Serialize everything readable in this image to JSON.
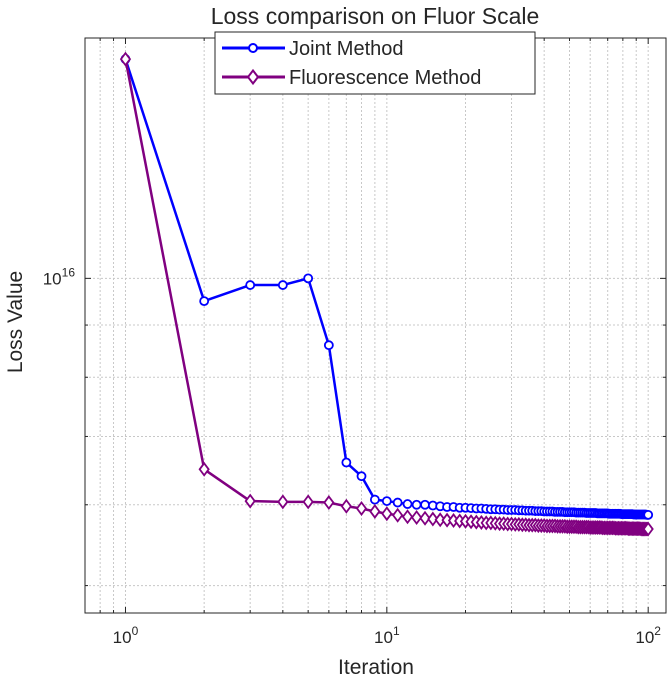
{
  "chart_data": {
    "type": "line",
    "title": "Loss comparison on Fluor Scale",
    "xlabel": "Iteration",
    "ylabel": "Loss Value",
    "xscale": "log",
    "yscale": "log",
    "xlim": [
      0.7,
      117
    ],
    "ylim": [
      4700000000000000.0,
      1.72e+16
    ],
    "grid": true,
    "legend_position": "top-center",
    "x_ticks": [
      {
        "base": "10",
        "exp": "0",
        "value": 1
      },
      {
        "base": "10",
        "exp": "1",
        "value": 10
      },
      {
        "base": "10",
        "exp": "2",
        "value": 100
      }
    ],
    "y_ticks": [
      {
        "base": "10",
        "exp": "16",
        "value": 1e+16
      }
    ],
    "series": [
      {
        "name": "Joint Method",
        "color": "#0000ff",
        "marker": "circle",
        "x": [
          1,
          2,
          3,
          4,
          5,
          6,
          7,
          8,
          9,
          10,
          11,
          12,
          13,
          14,
          15,
          16,
          17,
          18,
          19,
          20,
          21,
          22,
          23,
          24,
          25,
          26,
          27,
          28,
          29,
          30,
          31,
          32,
          33,
          34,
          35,
          36,
          37,
          38,
          39,
          40,
          41,
          42,
          43,
          44,
          45,
          46,
          47,
          48,
          49,
          50,
          51,
          52,
          53,
          54,
          55,
          56,
          57,
          58,
          59,
          60,
          61,
          62,
          63,
          64,
          65,
          66,
          67,
          68,
          69,
          70,
          71,
          72,
          73,
          74,
          75,
          76,
          77,
          78,
          79,
          80,
          81,
          82,
          83,
          84,
          85,
          86,
          87,
          88,
          89,
          90,
          91,
          92,
          93,
          94,
          95,
          96,
          97,
          98,
          99,
          100
        ],
        "y": [
          1.64e+16,
          9500000000000000.0,
          9850000000000000.0,
          9850000000000000.0,
          1e+16,
          8600000000000000.0,
          6600000000000000.0,
          6400000000000000.0,
          6070000000000000.0,
          6050000000000000.0,
          6030000000000000.0,
          6010000000000000.0,
          6000000000000000.0,
          6000000000000000.0,
          5990000000000000.0,
          5980000000000000.0,
          5970000000000000.0,
          5970000000000000.0,
          5960000000000000.0,
          5960000000000000.0,
          5955000000000000.0,
          5950000000000000.0,
          5950000000000000.0,
          5945000000000000.0,
          5940000000000000.0,
          5940000000000000.0,
          5935000000000000.0,
          5935000000000000.0,
          5930000000000000.0,
          5930000000000000.0,
          5930000000000000.0,
          5925000000000000.0,
          5925000000000000.0,
          5920000000000000.0,
          5920000000000000.0,
          5920000000000000.0,
          5915000000000000.0,
          5915000000000000.0,
          5915000000000000.0,
          5910000000000000.0,
          5910000000000000.0,
          5910000000000000.0,
          5910000000000000.0,
          5905000000000000.0,
          5905000000000000.0,
          5905000000000000.0,
          5905000000000000.0,
          5900000000000000.0,
          5900000000000000.0,
          5900000000000000.0,
          5900000000000000.0,
          5900000000000000.0,
          5895000000000000.0,
          5895000000000000.0,
          5895000000000000.0,
          5895000000000000.0,
          5895000000000000.0,
          5890000000000000.0,
          5890000000000000.0,
          5890000000000000.0,
          5890000000000000.0,
          5890000000000000.0,
          5890000000000000.0,
          5885000000000000.0,
          5885000000000000.0,
          5885000000000000.0,
          5885000000000000.0,
          5885000000000000.0,
          5885000000000000.0,
          5885000000000000.0,
          5880000000000000.0,
          5880000000000000.0,
          5880000000000000.0,
          5880000000000000.0,
          5880000000000000.0,
          5880000000000000.0,
          5880000000000000.0,
          5880000000000000.0,
          5875000000000000.0,
          5875000000000000.0,
          5875000000000000.0,
          5875000000000000.0,
          5875000000000000.0,
          5875000000000000.0,
          5875000000000000.0,
          5875000000000000.0,
          5875000000000000.0,
          5870000000000000.0,
          5870000000000000.0,
          5870000000000000.0,
          5870000000000000.0,
          5870000000000000.0,
          5870000000000000.0,
          5870000000000000.0,
          5870000000000000.0,
          5870000000000000.0,
          5870000000000000.0,
          5870000000000000.0,
          5865000000000000.0,
          5865000000000000.0
        ]
      },
      {
        "name": "Fluorescence Method",
        "color": "#800080",
        "marker": "diamond",
        "x": [
          1,
          2,
          3,
          4,
          5,
          6,
          7,
          8,
          9,
          10,
          11,
          12,
          13,
          14,
          15,
          16,
          17,
          18,
          19,
          20,
          21,
          22,
          23,
          24,
          25,
          26,
          27,
          28,
          29,
          30,
          31,
          32,
          33,
          34,
          35,
          36,
          37,
          38,
          39,
          40,
          41,
          42,
          43,
          44,
          45,
          46,
          47,
          48,
          49,
          50,
          51,
          52,
          53,
          54,
          55,
          56,
          57,
          58,
          59,
          60,
          61,
          62,
          63,
          64,
          65,
          66,
          67,
          68,
          69,
          70,
          71,
          72,
          73,
          74,
          75,
          76,
          77,
          78,
          79,
          80,
          81,
          82,
          83,
          84,
          85,
          86,
          87,
          88,
          89,
          90,
          91,
          92,
          93,
          94,
          95,
          96,
          97,
          98,
          99,
          100
        ],
        "y": [
          1.64e+16,
          6500000000000000.0,
          6050000000000000.0,
          6040000000000000.0,
          6040000000000000.0,
          6030000000000000.0,
          5980000000000000.0,
          5950000000000000.0,
          5910000000000000.0,
          5880000000000000.0,
          5860000000000000.0,
          5840000000000000.0,
          5830000000000000.0,
          5820000000000000.0,
          5810000000000000.0,
          5800000000000000.0,
          5795000000000000.0,
          5790000000000000.0,
          5785000000000000.0,
          5780000000000000.0,
          5775000000000000.0,
          5770000000000000.0,
          5765000000000000.0,
          5760000000000000.0,
          5760000000000000.0,
          5755000000000000.0,
          5750000000000000.0,
          5750000000000000.0,
          5745000000000000.0,
          5745000000000000.0,
          5740000000000000.0,
          5740000000000000.0,
          5735000000000000.0,
          5735000000000000.0,
          5730000000000000.0,
          5730000000000000.0,
          5730000000000000.0,
          5725000000000000.0,
          5725000000000000.0,
          5725000000000000.0,
          5720000000000000.0,
          5720000000000000.0,
          5720000000000000.0,
          5720000000000000.0,
          5715000000000000.0,
          5715000000000000.0,
          5715000000000000.0,
          5715000000000000.0,
          5710000000000000.0,
          5710000000000000.0,
          5710000000000000.0,
          5710000000000000.0,
          5710000000000000.0,
          5705000000000000.0,
          5705000000000000.0,
          5705000000000000.0,
          5705000000000000.0,
          5705000000000000.0,
          5705000000000000.0,
          5700000000000000.0,
          5700000000000000.0,
          5700000000000000.0,
          5700000000000000.0,
          5700000000000000.0,
          5700000000000000.0,
          5700000000000000.0,
          5695000000000000.0,
          5695000000000000.0,
          5695000000000000.0,
          5695000000000000.0,
          5695000000000000.0,
          5695000000000000.0,
          5695000000000000.0,
          5695000000000000.0,
          5690000000000000.0,
          5690000000000000.0,
          5690000000000000.0,
          5690000000000000.0,
          5690000000000000.0,
          5690000000000000.0,
          5690000000000000.0,
          5690000000000000.0,
          5690000000000000.0,
          5685000000000000.0,
          5685000000000000.0,
          5685000000000000.0,
          5685000000000000.0,
          5685000000000000.0,
          5685000000000000.0,
          5685000000000000.0,
          5685000000000000.0,
          5685000000000000.0,
          5685000000000000.0,
          5680000000000000.0,
          5680000000000000.0,
          5680000000000000.0,
          5680000000000000.0,
          5680000000000000.0,
          5680000000000000.0,
          5680000000000000.0
        ]
      }
    ]
  }
}
